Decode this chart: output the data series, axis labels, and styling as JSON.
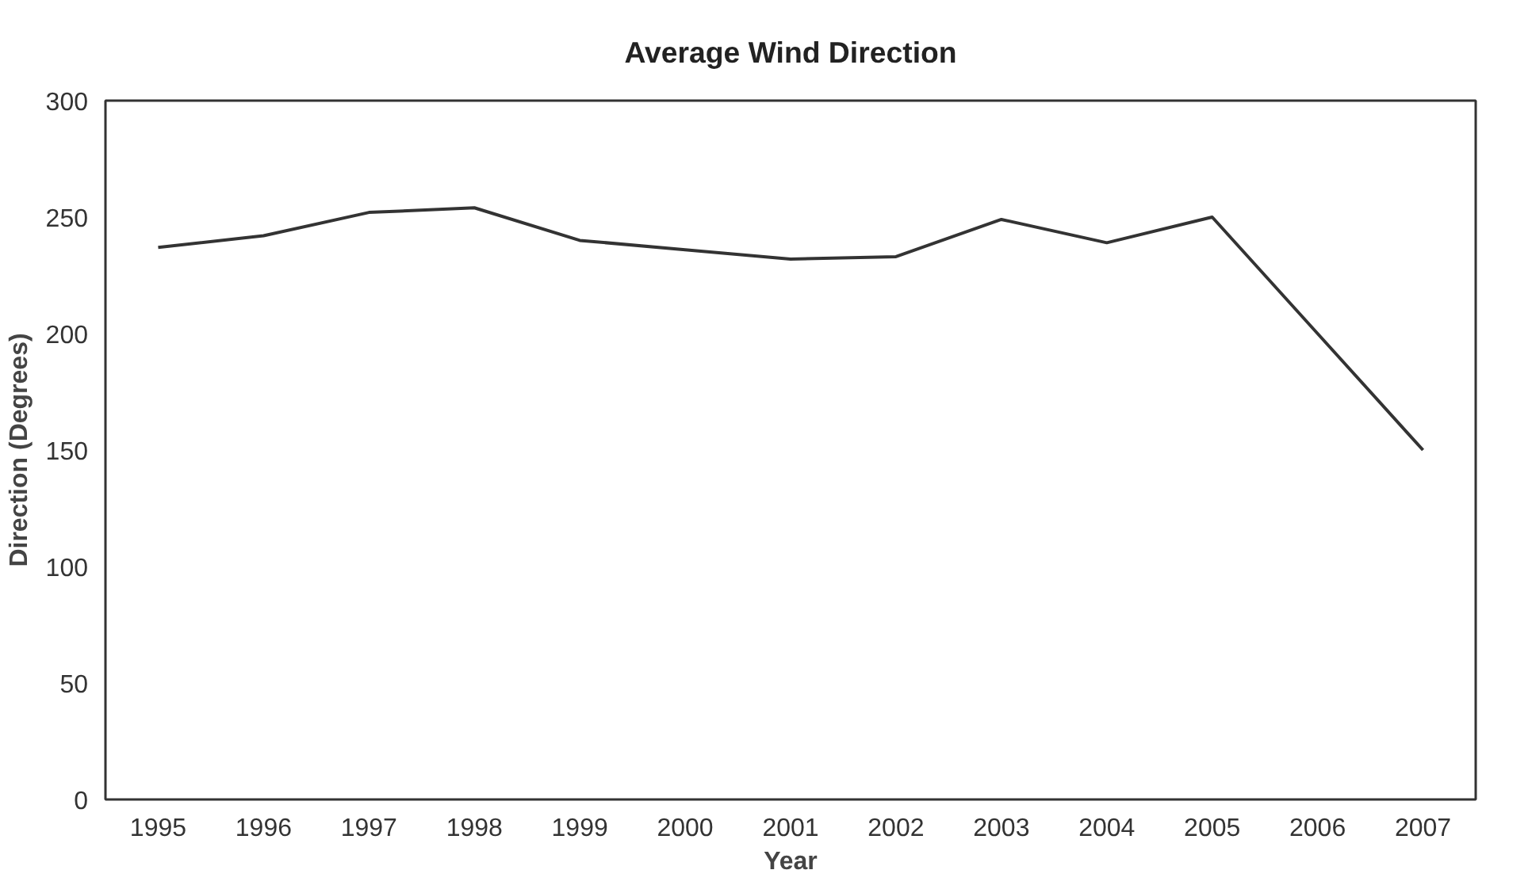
{
  "chart_data": {
    "type": "line",
    "title": "Average Wind Direction",
    "xlabel": "Year",
    "ylabel": "Direction (Degrees)",
    "categories": [
      "1995",
      "1996",
      "1997",
      "1998",
      "1999",
      "2000",
      "2001",
      "2002",
      "2003",
      "2004",
      "2005",
      "2006",
      "2007"
    ],
    "series": [
      {
        "color": "#333333",
        "values": [
          237,
          242,
          252,
          254,
          240,
          236,
          232,
          233,
          249,
          239,
          250,
          200,
          150
        ]
      }
    ],
    "ylim": [
      0,
      300
    ],
    "yticks": [
      0,
      50,
      100,
      150,
      200,
      250,
      300
    ],
    "grid": false,
    "marker": "none",
    "line_style": "solid"
  }
}
